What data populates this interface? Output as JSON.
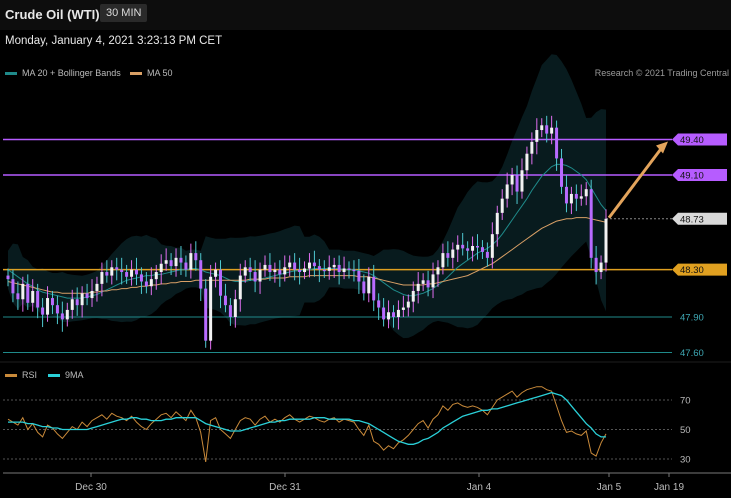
{
  "header": {
    "title": "Crude Oil (WTI)",
    "interval": "30 MIN"
  },
  "timestamp": "Monday, January 4, 2021 3:23:13 PM CET",
  "legend": {
    "ma20": {
      "label": "MA 20 + Bollinger Bands",
      "color": "#1f8a8a"
    },
    "ma50": {
      "label": "MA 50",
      "color": "#d9a066"
    }
  },
  "credit": "Research © 2021 Trading Central",
  "rsi_legend": {
    "rsi": {
      "label": "RSI",
      "color": "#c98a3a"
    },
    "ma9": {
      "label": "9MA",
      "color": "#2ad0d8"
    }
  },
  "chart_data": [
    {
      "type": "candlestick",
      "x": [
        "Dec 30",
        "Dec 31",
        "Jan 4",
        "Jan 5",
        "Jan 19"
      ],
      "ylim": [
        47.5,
        49.8
      ],
      "levels": [
        {
          "value": 49.4,
          "label": "49.40",
          "color": "#b65cff"
        },
        {
          "value": 49.1,
          "label": "49.10",
          "color": "#b65cff"
        },
        {
          "value": 48.73,
          "label": "48.73",
          "color": "#888888"
        },
        {
          "value": 48.3,
          "label": "48.30",
          "color": "#e0a020"
        },
        {
          "value": 47.9,
          "label": "47.90",
          "color": "#1f8a8a"
        },
        {
          "value": 47.6,
          "label": "47.60",
          "color": "#1f8a8a"
        }
      ],
      "current_price": 48.73,
      "forecast_arrow": {
        "from": 48.73,
        "to": 49.4
      },
      "closes": [
        48.22,
        48.1,
        48.05,
        48.18,
        48.02,
        48.12,
        47.98,
        47.92,
        48.06,
        48.0,
        47.93,
        47.88,
        47.96,
        48.05,
        48.0,
        48.1,
        48.06,
        48.12,
        48.18,
        48.28,
        48.25,
        48.32,
        48.3,
        48.28,
        48.24,
        48.3,
        48.26,
        48.2,
        48.16,
        48.22,
        48.28,
        48.35,
        48.38,
        48.33,
        48.4,
        48.36,
        48.3,
        48.44,
        48.38,
        48.14,
        47.7,
        48.24,
        48.3,
        48.08,
        48.0,
        47.9,
        48.05,
        48.25,
        48.32,
        48.28,
        48.2,
        48.3,
        48.34,
        48.28,
        48.3,
        48.26,
        48.32,
        48.36,
        48.3,
        48.28,
        48.31,
        48.36,
        48.33,
        48.3,
        48.29,
        48.32,
        48.34,
        48.28,
        48.31,
        48.3,
        48.29,
        48.2,
        48.1,
        48.24,
        48.04,
        47.98,
        47.88,
        47.94,
        47.9,
        47.96,
        47.98,
        48.03,
        48.12,
        48.18,
        48.21,
        48.15,
        48.26,
        48.32,
        48.44,
        48.4,
        48.47,
        48.51,
        48.48,
        48.46,
        48.5,
        48.49,
        48.45,
        48.4,
        48.6,
        48.78,
        48.9,
        49.02,
        49.1,
        48.96,
        49.14,
        49.28,
        49.38,
        49.48,
        49.52,
        49.45,
        49.5,
        49.24,
        49.0,
        48.86,
        48.94,
        48.9,
        48.92,
        48.98,
        48.4,
        48.28,
        48.36,
        48.73
      ],
      "ma20": [
        48.3,
        48.27,
        48.24,
        48.21,
        48.18,
        48.16,
        48.13,
        48.11,
        48.1,
        48.09,
        48.08,
        48.07,
        48.06,
        48.06,
        48.06,
        48.06,
        48.07,
        48.08,
        48.09,
        48.11,
        48.13,
        48.15,
        48.17,
        48.19,
        48.21,
        48.22,
        48.23,
        48.24,
        48.25,
        48.25,
        48.26,
        48.26,
        48.27,
        48.28,
        48.29,
        48.3,
        48.3,
        48.31,
        48.31,
        48.3,
        48.28,
        48.27,
        48.26,
        48.25,
        48.23,
        48.21,
        48.2,
        48.2,
        48.2,
        48.21,
        48.21,
        48.22,
        48.23,
        48.24,
        48.25,
        48.26,
        48.27,
        48.28,
        48.29,
        48.29,
        48.3,
        48.3,
        48.31,
        48.31,
        48.31,
        48.31,
        48.31,
        48.31,
        48.3,
        48.3,
        48.3,
        48.29,
        48.28,
        48.27,
        48.25,
        48.22,
        48.19,
        48.16,
        48.13,
        48.11,
        48.09,
        48.08,
        48.08,
        48.09,
        48.1,
        48.12,
        48.14,
        48.17,
        48.2,
        48.24,
        48.28,
        48.32,
        48.35,
        48.38,
        48.41,
        48.44,
        48.46,
        48.48,
        48.51,
        48.55,
        48.6,
        48.66,
        48.72,
        48.78,
        48.84,
        48.9,
        48.97,
        49.03,
        49.09,
        49.13,
        49.17,
        49.19,
        49.19,
        49.18,
        49.16,
        49.13,
        49.1,
        49.06,
        48.99,
        48.92,
        48.85,
        48.8
      ],
      "ma50": [
        48.2,
        48.19,
        48.18,
        48.17,
        48.16,
        48.15,
        48.14,
        48.13,
        48.12,
        48.11,
        48.11,
        48.1,
        48.1,
        48.1,
        48.1,
        48.1,
        48.1,
        48.11,
        48.11,
        48.12,
        48.12,
        48.13,
        48.13,
        48.14,
        48.14,
        48.15,
        48.15,
        48.16,
        48.16,
        48.17,
        48.17,
        48.18,
        48.18,
        48.19,
        48.19,
        48.2,
        48.2,
        48.2,
        48.21,
        48.21,
        48.21,
        48.21,
        48.21,
        48.21,
        48.21,
        48.21,
        48.21,
        48.21,
        48.21,
        48.22,
        48.22,
        48.22,
        48.22,
        48.23,
        48.23,
        48.23,
        48.23,
        48.24,
        48.24,
        48.24,
        48.24,
        48.25,
        48.25,
        48.25,
        48.25,
        48.25,
        48.25,
        48.25,
        48.25,
        48.25,
        48.25,
        48.24,
        48.24,
        48.24,
        48.23,
        48.22,
        48.21,
        48.2,
        48.19,
        48.18,
        48.17,
        48.17,
        48.17,
        48.17,
        48.17,
        48.18,
        48.18,
        48.19,
        48.2,
        48.21,
        48.22,
        48.23,
        48.24,
        48.25,
        48.27,
        48.29,
        48.31,
        48.33,
        48.35,
        48.38,
        48.41,
        48.44,
        48.47,
        48.5,
        48.53,
        48.56,
        48.59,
        48.62,
        48.65,
        48.67,
        48.69,
        48.71,
        48.72,
        48.73,
        48.73,
        48.74,
        48.74,
        48.74,
        48.73,
        48.72,
        48.71,
        48.7
      ]
    },
    {
      "type": "line",
      "title": "RSI",
      "ylim": [
        25,
        82
      ],
      "yticks": [
        30,
        50,
        70
      ],
      "series": [
        {
          "name": "RSI",
          "values": [
            57,
            55,
            53,
            58,
            50,
            54,
            48,
            45,
            53,
            51,
            47,
            44,
            48,
            52,
            50,
            55,
            52,
            56,
            58,
            60,
            57,
            61,
            59,
            58,
            56,
            59,
            55,
            52,
            50,
            54,
            57,
            60,
            61,
            58,
            62,
            59,
            56,
            63,
            58,
            48,
            28,
            56,
            58,
            50,
            47,
            44,
            50,
            56,
            58,
            57,
            53,
            57,
            59,
            55,
            57,
            55,
            58,
            60,
            57,
            55,
            57,
            59,
            58,
            56,
            55,
            57,
            58,
            55,
            57,
            56,
            55,
            50,
            46,
            53,
            42,
            40,
            36,
            39,
            37,
            41,
            43,
            46,
            50,
            54,
            56,
            51,
            57,
            60,
            66,
            63,
            67,
            68,
            66,
            65,
            66,
            65,
            63,
            60,
            65,
            70,
            72,
            74,
            76,
            72,
            75,
            77,
            78,
            79,
            79,
            77,
            76,
            66,
            56,
            48,
            49,
            47,
            46,
            49,
            34,
            32,
            41,
            47
          ]
        },
        {
          "name": "9MA",
          "values": [
            55,
            55,
            55,
            55,
            54,
            54,
            53,
            52,
            52,
            51,
            51,
            50,
            50,
            50,
            50,
            50,
            50,
            51,
            52,
            53,
            54,
            55,
            56,
            57,
            57,
            58,
            58,
            57,
            57,
            56,
            56,
            56,
            57,
            57,
            58,
            58,
            58,
            58,
            58,
            56,
            54,
            53,
            52,
            51,
            50,
            49,
            49,
            49,
            50,
            51,
            52,
            53,
            54,
            55,
            55,
            56,
            56,
            57,
            57,
            57,
            57,
            57,
            58,
            58,
            58,
            57,
            57,
            57,
            57,
            57,
            56,
            56,
            55,
            54,
            52,
            50,
            48,
            46,
            44,
            42,
            41,
            40,
            40,
            41,
            43,
            44,
            46,
            48,
            51,
            53,
            55,
            57,
            59,
            60,
            61,
            62,
            63,
            63,
            64,
            64,
            65,
            66,
            67,
            68,
            69,
            70,
            71,
            72,
            73,
            74,
            75,
            74,
            73,
            70,
            66,
            62,
            58,
            54,
            51,
            47,
            45,
            45
          ]
        }
      ]
    }
  ]
}
